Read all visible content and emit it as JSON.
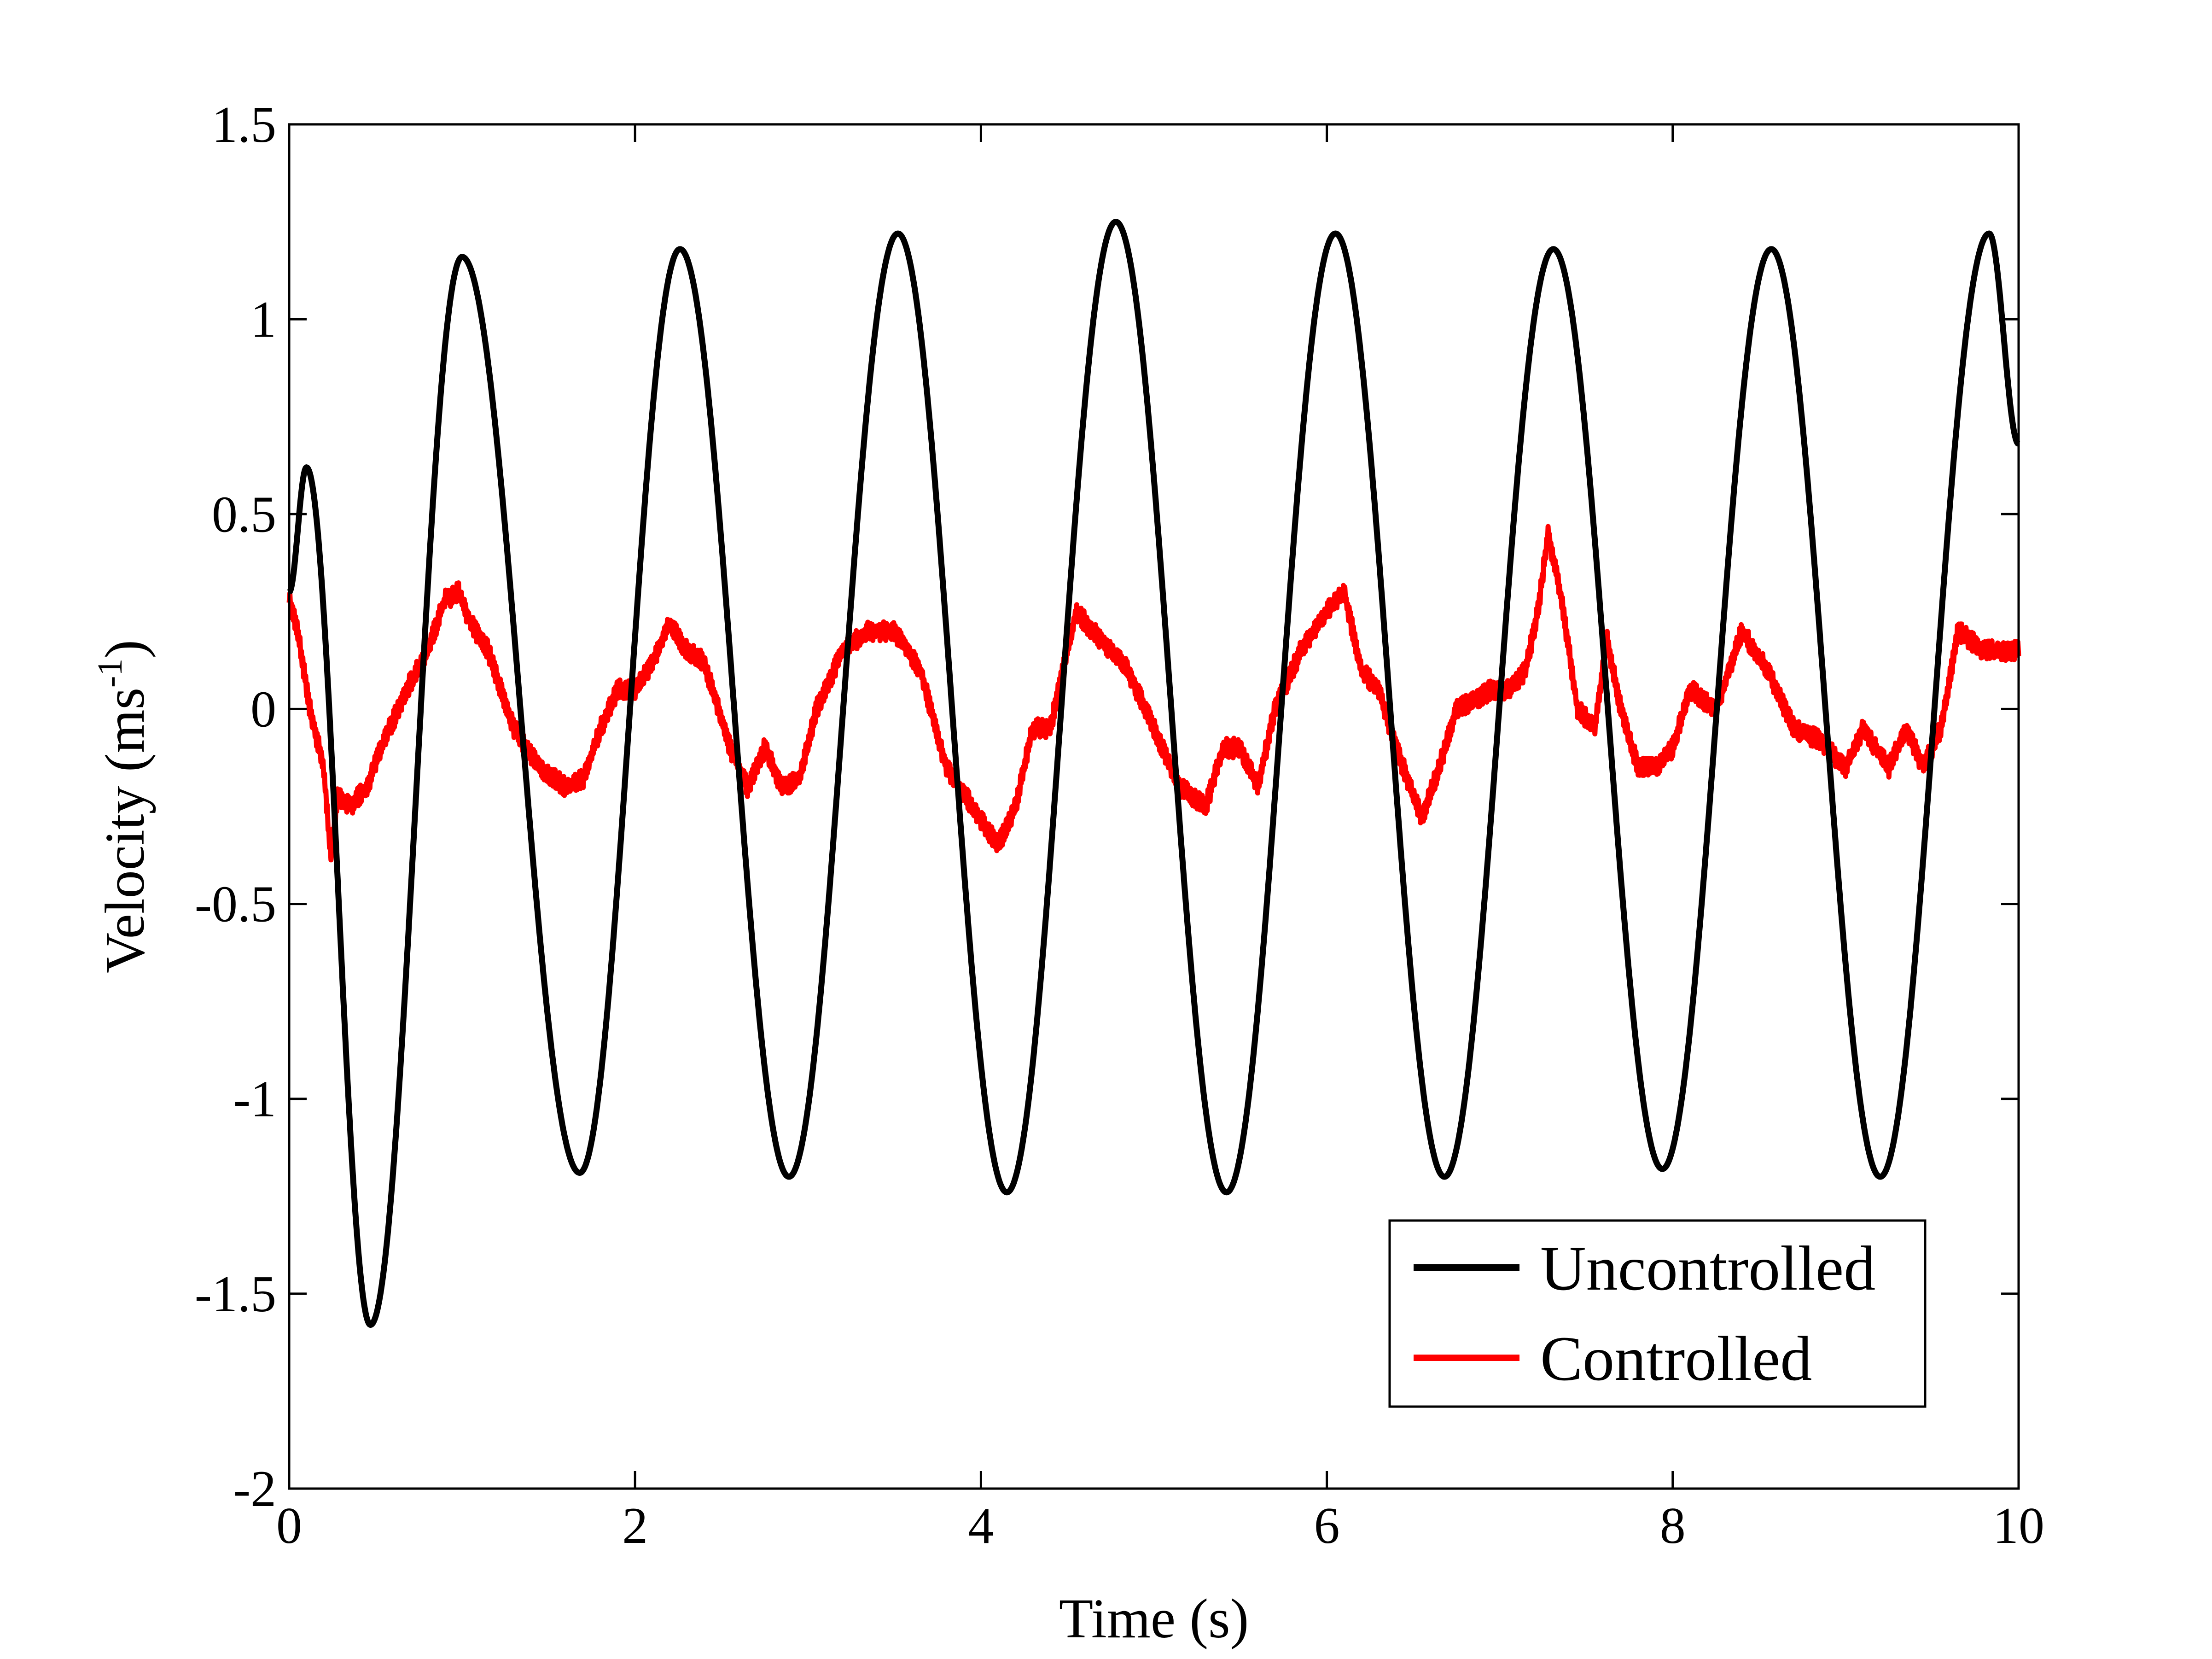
{
  "chart_data": {
    "type": "line",
    "title": "",
    "xlabel": "Time (s)",
    "ylabel_main": "Velocity (ms",
    "ylabel_sup": "-1",
    "ylabel_close": ")",
    "xlim": [
      0,
      10
    ],
    "ylim": [
      -2,
      1.5
    ],
    "x_ticks": [
      0,
      2,
      4,
      6,
      8,
      10
    ],
    "x_tick_labels": [
      "0",
      "2",
      "4",
      "6",
      "8",
      "10"
    ],
    "y_ticks": [
      1.5,
      1,
      0.5,
      0,
      -0.5,
      -1,
      -1.5,
      -2
    ],
    "y_tick_labels": [
      "1.5",
      "1",
      "0.5",
      "0",
      "-0.5",
      "-1",
      "-1.5",
      "-2"
    ],
    "grid": false,
    "legend_position": "bottom-right",
    "series": [
      {
        "name": "Uncontrolled",
        "color": "#000000",
        "sampled": false,
        "description": "lightly damped oscillation, period approx 1.27 s",
        "x": [
          0.0,
          0.1,
          0.47,
          1.0,
          1.68,
          2.26,
          2.89,
          3.52,
          4.15,
          4.78,
          5.42,
          6.05,
          6.68,
          7.31,
          7.94,
          8.57,
          9.2,
          9.83,
          10.0
        ],
        "y": [
          0.3,
          0.62,
          -1.58,
          1.16,
          -1.19,
          1.18,
          -1.2,
          1.22,
          -1.24,
          1.25,
          -1.24,
          1.22,
          -1.2,
          1.18,
          -1.18,
          1.18,
          -1.2,
          1.22,
          0.68
        ]
      },
      {
        "name": "Controlled",
        "color": "#ff0000",
        "sampled": true,
        "x": [
          0.0,
          0.05,
          0.12,
          0.2,
          0.24,
          0.28,
          0.35,
          0.45,
          0.55,
          0.68,
          0.8,
          0.9,
          0.98,
          1.05,
          1.15,
          1.3,
          1.45,
          1.6,
          1.7,
          1.8,
          1.9,
          2.0,
          2.1,
          2.2,
          2.3,
          2.4,
          2.55,
          2.65,
          2.75,
          2.85,
          2.95,
          3.05,
          3.2,
          3.35,
          3.5,
          3.65,
          3.8,
          3.95,
          4.1,
          4.2,
          4.3,
          4.4,
          4.55,
          4.65,
          4.75,
          4.85,
          5.0,
          5.15,
          5.3,
          5.4,
          5.5,
          5.6,
          5.7,
          5.85,
          6.0,
          6.1,
          6.2,
          6.3,
          6.4,
          6.55,
          6.65,
          6.75,
          6.85,
          6.95,
          7.05,
          7.15,
          7.22,
          7.28,
          7.35,
          7.45,
          7.55,
          7.62,
          7.7,
          7.8,
          7.9,
          8.0,
          8.1,
          8.25,
          8.4,
          8.55,
          8.7,
          8.85,
          9.0,
          9.1,
          9.25,
          9.35,
          9.45,
          9.55,
          9.65,
          9.8,
          10.0
        ],
        "y": [
          0.28,
          0.2,
          0.0,
          -0.15,
          -0.38,
          -0.22,
          -0.25,
          -0.2,
          -0.08,
          0.05,
          0.15,
          0.28,
          0.3,
          0.22,
          0.15,
          -0.05,
          -0.15,
          -0.2,
          -0.18,
          -0.05,
          0.05,
          0.05,
          0.12,
          0.22,
          0.15,
          0.12,
          -0.1,
          -0.2,
          -0.1,
          -0.2,
          -0.18,
          0.0,
          0.15,
          0.2,
          0.2,
          0.1,
          -0.15,
          -0.25,
          -0.35,
          -0.25,
          -0.05,
          -0.05,
          0.25,
          0.2,
          0.15,
          0.1,
          -0.05,
          -0.2,
          -0.25,
          -0.1,
          -0.1,
          -0.2,
          0.0,
          0.15,
          0.25,
          0.3,
          0.1,
          0.05,
          -0.1,
          -0.28,
          -0.15,
          0.0,
          0.02,
          0.05,
          0.05,
          0.1,
          0.25,
          0.45,
          0.3,
          0.0,
          -0.05,
          0.18,
          0.0,
          -0.15,
          -0.15,
          -0.1,
          0.05,
          0.0,
          0.2,
          0.1,
          -0.05,
          -0.08,
          -0.15,
          -0.05,
          -0.15,
          -0.05,
          -0.15,
          -0.05,
          0.2,
          0.15,
          0.15
        ]
      }
    ]
  }
}
